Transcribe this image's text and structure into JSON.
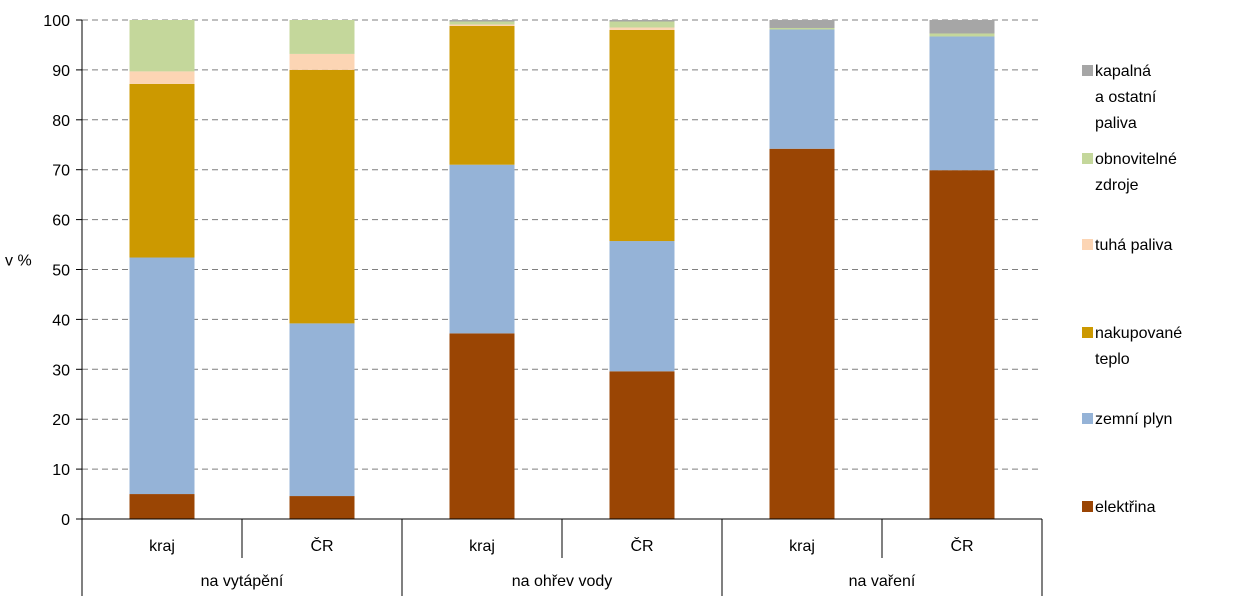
{
  "chart_data": {
    "type": "bar",
    "stacked": true,
    "ylabel": "v %",
    "ylim": [
      0,
      100
    ],
    "yticks": [
      "0",
      "10",
      "20",
      "30",
      "40",
      "50",
      "60",
      "70",
      "80",
      "90",
      "100"
    ],
    "grid": "horizontal dashed",
    "legend_position": "right",
    "categories": [
      "kraj",
      "ČR",
      "kraj",
      "ČR",
      "kraj",
      "ČR"
    ],
    "groups": [
      {
        "label": "na vytápění",
        "span": 2
      },
      {
        "label": "na ohřev vody",
        "span": 2
      },
      {
        "label": "na vaření",
        "span": 2
      }
    ],
    "series": [
      {
        "name": "elektřina",
        "color": "#9a4504",
        "values": [
          5.0,
          4.6,
          37.2,
          29.6,
          74.2,
          69.9
        ]
      },
      {
        "name": "zemní plyn",
        "color": "#95b3d7",
        "values": [
          47.4,
          34.6,
          33.8,
          26.1,
          23.9,
          26.8
        ]
      },
      {
        "name": "nakupované teplo",
        "color": "#cc9900",
        "values": [
          34.8,
          50.8,
          27.8,
          42.3,
          0,
          0
        ]
      },
      {
        "name": "tuhá paliva",
        "color": "#fcd5b4",
        "values": [
          2.5,
          3.2,
          0.3,
          0.5,
          0,
          0
        ]
      },
      {
        "name": "obnovitelné zdroje",
        "color": "#c4d79b",
        "values": [
          10.3,
          6.8,
          0.6,
          1.2,
          0.3,
          0.6
        ]
      },
      {
        "name": "kapalná a ostatní paliva",
        "color": "#a6a6a6",
        "values": [
          0,
          0,
          0.3,
          0.3,
          1.6,
          2.7
        ]
      }
    ],
    "legend": [
      {
        "lines": [
          "kapalná",
          "a ostatní",
          "paliva"
        ]
      },
      {
        "lines": [
          "obnovitelné",
          "zdroje"
        ]
      },
      {
        "lines": [
          "tuhá paliva"
        ]
      },
      {
        "lines": [
          "nakupované",
          "teplo"
        ]
      },
      {
        "lines": [
          "zemní plyn"
        ]
      },
      {
        "lines": [
          "elektřina"
        ]
      }
    ]
  }
}
